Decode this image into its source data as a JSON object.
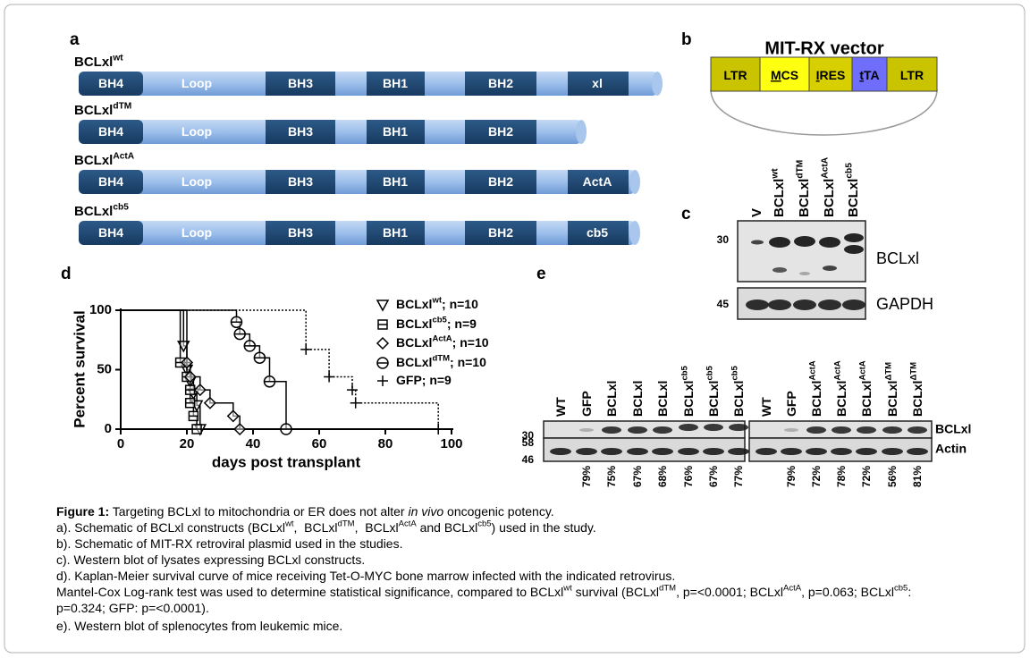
{
  "panels": {
    "a": {
      "label": "a",
      "constructs": [
        {
          "name": "BCLxl",
          "sup": "wt",
          "domains": [
            "BH4",
            "Loop",
            "BH3",
            "BH1",
            "BH2",
            "xl"
          ]
        },
        {
          "name": "BCLxl",
          "sup": "dTM",
          "domains": [
            "BH4",
            "Loop",
            "BH3",
            "BH1",
            "BH2"
          ]
        },
        {
          "name": "BCLxl",
          "sup": "ActA",
          "domains": [
            "BH4",
            "Loop",
            "BH3",
            "BH1",
            "BH2",
            "ActA"
          ]
        },
        {
          "name": "BCLxl",
          "sup": "cb5",
          "domains": [
            "BH4",
            "Loop",
            "BH3",
            "BH1",
            "BH2",
            "cb5"
          ]
        }
      ]
    },
    "b": {
      "label": "b",
      "title": "MIT-RX vector",
      "elements": [
        [
          {
            "text": "LTR"
          }
        ],
        [
          {
            "text": "M",
            "style": "underline"
          },
          {
            "text": "CS"
          }
        ],
        [
          {
            "text": "I",
            "style": "underline"
          },
          {
            "text": "RES"
          }
        ],
        [
          {
            "text": "t",
            "style": "underline"
          },
          {
            "text": "TA"
          }
        ],
        [
          {
            "text": "LTR"
          }
        ]
      ]
    },
    "c": {
      "label": "c",
      "lanes": [
        {
          "name": "V"
        },
        {
          "name": "BCLxl",
          "sup": "wt"
        },
        {
          "name": "BCLxl",
          "sup": "dTM"
        },
        {
          "name": "BCLxl",
          "sup": "ActA"
        },
        {
          "name": "BCLxl",
          "sup": "cb5"
        }
      ],
      "markers": [
        30,
        45
      ],
      "rows": [
        "BCLxl",
        "GAPDH"
      ]
    },
    "d": {
      "label": "d",
      "chart_data": {
        "type": "line",
        "ylabel": "Percent survival",
        "xlabel": "days post transplant",
        "xlim": [
          0,
          100
        ],
        "ylim": [
          0,
          100
        ],
        "xticks": [
          0,
          20,
          40,
          60,
          80,
          100
        ],
        "yticks": [
          0,
          50,
          100
        ],
        "series": [
          {
            "name": "BCLxl",
            "name_sup": "wt",
            "name_suffix": "; n=10",
            "marker": "triangle",
            "color": "#000000",
            "line_style": "solid",
            "x": [
              0,
              19,
              20,
              21,
              22,
              23,
              24
            ],
            "values": [
              100,
              70,
              50,
              40,
              30,
              20,
              0
            ]
          },
          {
            "name": "BCLxl",
            "name_sup": "cb5",
            "name_suffix": "; n=9",
            "marker": "square",
            "color": "#000000",
            "line_style": "solid",
            "x": [
              0,
              18,
              20,
              21,
              21,
              22,
              23
            ],
            "values": [
              100,
              56,
              44,
              33,
              22,
              11,
              0
            ]
          },
          {
            "name": "BCLxl",
            "name_sup": "ActA",
            "name_suffix": "; n=10",
            "marker": "diamond",
            "color": "#000000",
            "line_style": "solid",
            "x": [
              0,
              20,
              21,
              24,
              27,
              34,
              36
            ],
            "values": [
              100,
              56,
              44,
              33,
              22,
              11,
              0
            ]
          },
          {
            "name": "BCLxl",
            "name_sup": "dTM",
            "name_suffix": "; n=10",
            "marker": "circle",
            "color": "#000000",
            "line_style": "solid",
            "x": [
              0,
              35,
              36,
              39,
              42,
              45,
              50
            ],
            "values": [
              100,
              90,
              80,
              70,
              60,
              40,
              0
            ]
          },
          {
            "name": "GFP; n=9",
            "marker": "plus",
            "color": "#000000",
            "line_style": "dotted",
            "x": [
              0,
              56,
              63,
              70,
              71,
              96
            ],
            "values": [
              100,
              67,
              44,
              33,
              22,
              0
            ]
          }
        ]
      }
    },
    "e": {
      "label": "e",
      "markers": [
        30,
        58,
        46
      ],
      "rows": [
        "BCLxl",
        "Actin"
      ],
      "blots": [
        {
          "lanes": [
            {
              "name": "WT"
            },
            {
              "name": "GFP"
            },
            {
              "name": "BCLxl"
            },
            {
              "name": "BCLxl"
            },
            {
              "name": "BCLxl"
            },
            {
              "name": "BCLxl",
              "sup": "cb5"
            },
            {
              "name": "BCLxl",
              "sup": "cb5"
            },
            {
              "name": "BCLxl",
              "sup": "cb5"
            }
          ],
          "percents": [
            null,
            "79%",
            "75%",
            "67%",
            "68%",
            "76%",
            "67%",
            "77%"
          ]
        },
        {
          "lanes": [
            {
              "name": "WT"
            },
            {
              "name": "GFP"
            },
            {
              "name": "BCLxl",
              "sup": "ActA"
            },
            {
              "name": "BCLxl",
              "sup": "ActA"
            },
            {
              "name": "BCLxl",
              "sup": "ActA"
            },
            {
              "name": "BCLxl",
              "sup": "ΔTM"
            },
            {
              "name": "BCLxl",
              "sup": "ΔTM"
            }
          ],
          "percents": [
            null,
            "79%",
            "72%",
            "78%",
            "72%",
            "56%",
            "81%"
          ]
        }
      ]
    }
  },
  "caption": {
    "lines": [
      [
        {
          "text": "Figure 1:",
          "style": "bold"
        },
        {
          "text": " Targeting BCLxl to mitochondria or ER does not alter "
        },
        {
          "text": "in vivo",
          "style": "italic"
        },
        {
          "text": " oncogenic potency."
        }
      ],
      [
        {
          "text": "a). Schematic of BCLxl constructs (BCLxl"
        },
        {
          "text": "wt",
          "style": "sup"
        },
        {
          "text": ",  BCLxl"
        },
        {
          "text": "dTM",
          "style": "sup"
        },
        {
          "text": ",  BCLxl"
        },
        {
          "text": "ActA",
          "style": "sup"
        },
        {
          "text": " and BCLxl"
        },
        {
          "text": "cb5",
          "style": "sup"
        },
        {
          "text": ") used in the study."
        }
      ],
      [
        {
          "text": "b). Schematic of MIT-RX retroviral plasmid used in the studies."
        }
      ],
      [
        {
          "text": "c). Western blot of lysates expressing BCLxl constructs."
        }
      ],
      [
        {
          "text": "d). Kaplan-Meier survival curve of mice receiving Tet-O-MYC bone marrow infected with the indicated retrovirus."
        }
      ],
      [
        {
          "text": "Mantel-Cox Log-rank test was used to determine statistical significance, compared to BCLxl"
        },
        {
          "text": "wt",
          "style": "sup"
        },
        {
          "text": " survival (BCLxl"
        },
        {
          "text": "dTM",
          "style": "sup"
        },
        {
          "text": ", p=<0.0001; BCLxl"
        },
        {
          "text": "ActA",
          "style": "sup"
        },
        {
          "text": ", p=0.063; BCLxl"
        },
        {
          "text": "cb5",
          "style": "sup"
        },
        {
          "text": ":"
        }
      ],
      [
        {
          "text": "p=0.324; GFP: p=<0.0001)."
        }
      ],
      [
        {
          "text": "e). Western blot of splenocytes from leukemic mice."
        }
      ]
    ]
  }
}
